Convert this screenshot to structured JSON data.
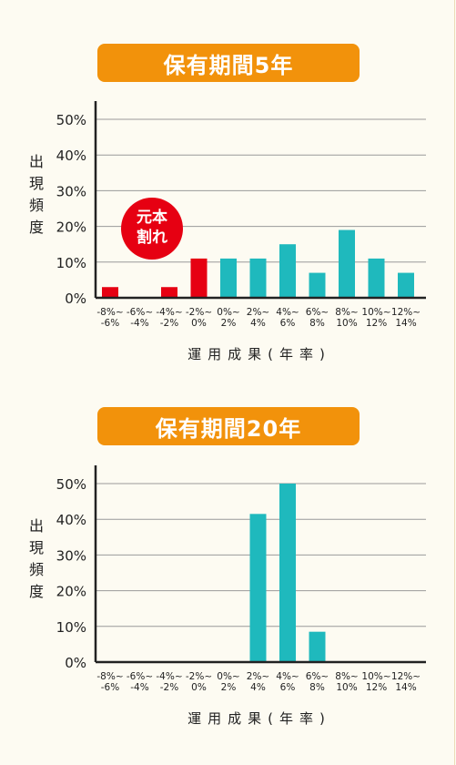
{
  "chart_data": [
    {
      "type": "bar",
      "title": "保有期間5年",
      "ylabel": "出現頻度",
      "xlabel": "運用成果(年率)",
      "ylim": [
        0,
        50
      ],
      "yticks": [
        "0%",
        "10%",
        "20%",
        "30%",
        "40%",
        "50%"
      ],
      "grid": true,
      "categories": [
        [
          "-8%~",
          "-6%"
        ],
        [
          "-6%~",
          "-4%"
        ],
        [
          "-4%~",
          "-2%"
        ],
        [
          "-2%~",
          "0%"
        ],
        [
          "0%~",
          "2%"
        ],
        [
          "2%~",
          "4%"
        ],
        [
          "4%~",
          "6%"
        ],
        [
          "6%~",
          "8%"
        ],
        [
          "8%~",
          "10%"
        ],
        [
          "10%~",
          "12%"
        ],
        [
          "12%~",
          "14%"
        ]
      ],
      "values": [
        3,
        0,
        3,
        11,
        11,
        11,
        15,
        7,
        19,
        11,
        7
      ],
      "colors": {
        "loss": "#e60012",
        "gain": "#1fb9bd"
      },
      "loss_count": 4,
      "annotation": {
        "line1": "元本",
        "line2": "割れ",
        "color": "#e60012"
      }
    },
    {
      "type": "bar",
      "title": "保有期間20年",
      "ylabel": "出現頻度",
      "xlabel": "運用成果(年率)",
      "ylim": [
        0,
        50
      ],
      "yticks": [
        "0%",
        "10%",
        "20%",
        "30%",
        "40%",
        "50%"
      ],
      "grid": true,
      "categories": [
        [
          "-8%~",
          "-6%"
        ],
        [
          "-6%~",
          "-4%"
        ],
        [
          "-4%~",
          "-2%"
        ],
        [
          "-2%~",
          "0%"
        ],
        [
          "0%~",
          "2%"
        ],
        [
          "2%~",
          "4%"
        ],
        [
          "4%~",
          "6%"
        ],
        [
          "6%~",
          "8%"
        ],
        [
          "8%~",
          "10%"
        ],
        [
          "10%~",
          "12%"
        ],
        [
          "12%~",
          "14%"
        ]
      ],
      "values": [
        0,
        0,
        0,
        0,
        0,
        41.5,
        50,
        8.5,
        0,
        0,
        0
      ],
      "colors": {
        "loss": "#e60012",
        "gain": "#1fb9bd"
      },
      "loss_count": 4
    }
  ]
}
